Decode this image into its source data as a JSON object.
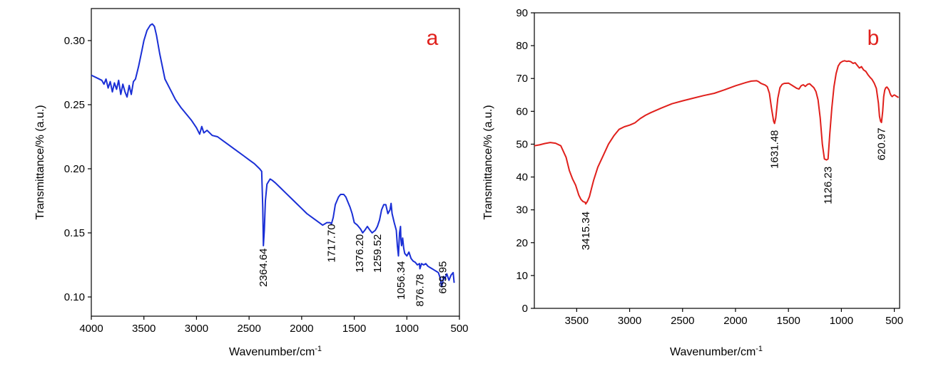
{
  "chart_data": [
    {
      "type": "line",
      "panel_label": "a",
      "title": "",
      "xlabel": "Wavenumber/cm",
      "xlabel_sup": "-1",
      "ylabel": "Transmittance/% (a.u.)",
      "xlim": [
        4000,
        500
      ],
      "ylim": [
        0.085,
        0.325
      ],
      "xticks": [
        "4000",
        "3500",
        "3000",
        "2500",
        "2000",
        "1500",
        "1000",
        "500"
      ],
      "yticks": [
        "0.10",
        "0.15",
        "0.20",
        "0.25",
        "0.30"
      ],
      "color": "#1a2fd6",
      "series": [
        {
          "name": "a",
          "x": [
            4000,
            3950,
            3900,
            3880,
            3860,
            3840,
            3820,
            3800,
            3780,
            3760,
            3740,
            3720,
            3700,
            3680,
            3660,
            3640,
            3620,
            3600,
            3580,
            3550,
            3520,
            3500,
            3470,
            3440,
            3420,
            3400,
            3380,
            3350,
            3300,
            3250,
            3200,
            3150,
            3100,
            3050,
            3000,
            2970,
            2950,
            2930,
            2900,
            2850,
            2800,
            2750,
            2700,
            2650,
            2600,
            2550,
            2500,
            2450,
            2400,
            2380,
            2370,
            2364,
            2355,
            2345,
            2330,
            2300,
            2280,
            2250,
            2200,
            2150,
            2100,
            2050,
            2000,
            1950,
            1900,
            1850,
            1800,
            1760,
            1730,
            1717,
            1700,
            1680,
            1650,
            1630,
            1600,
            1580,
            1560,
            1540,
            1520,
            1500,
            1470,
            1440,
            1420,
            1400,
            1376,
            1350,
            1330,
            1300,
            1280,
            1260,
            1240,
            1220,
            1200,
            1180,
            1160,
            1150,
            1140,
            1120,
            1100,
            1090,
            1080,
            1070,
            1060,
            1056,
            1050,
            1040,
            1030,
            1020,
            1000,
            980,
            960,
            940,
            920,
            900,
            880,
            876,
            860,
            840,
            820,
            800,
            780,
            760,
            740,
            720,
            700,
            680,
            670,
            660,
            650,
            640,
            620,
            600,
            580,
            560,
            550
          ],
          "values": [
            0.273,
            0.271,
            0.269,
            0.266,
            0.27,
            0.263,
            0.268,
            0.26,
            0.267,
            0.262,
            0.269,
            0.258,
            0.266,
            0.26,
            0.256,
            0.265,
            0.258,
            0.268,
            0.27,
            0.28,
            0.292,
            0.3,
            0.308,
            0.312,
            0.313,
            0.311,
            0.304,
            0.29,
            0.27,
            0.262,
            0.254,
            0.248,
            0.243,
            0.238,
            0.232,
            0.227,
            0.233,
            0.228,
            0.23,
            0.226,
            0.225,
            0.222,
            0.219,
            0.216,
            0.213,
            0.21,
            0.207,
            0.204,
            0.2,
            0.198,
            0.17,
            0.14,
            0.152,
            0.175,
            0.188,
            0.192,
            0.191,
            0.189,
            0.185,
            0.181,
            0.177,
            0.173,
            0.169,
            0.165,
            0.162,
            0.159,
            0.156,
            0.158,
            0.158,
            0.157,
            0.162,
            0.172,
            0.178,
            0.18,
            0.18,
            0.178,
            0.174,
            0.17,
            0.165,
            0.158,
            0.156,
            0.153,
            0.15,
            0.152,
            0.155,
            0.152,
            0.15,
            0.152,
            0.155,
            0.16,
            0.168,
            0.172,
            0.172,
            0.165,
            0.168,
            0.173,
            0.165,
            0.158,
            0.152,
            0.14,
            0.132,
            0.15,
            0.155,
            0.145,
            0.14,
            0.146,
            0.138,
            0.134,
            0.132,
            0.135,
            0.13,
            0.128,
            0.127,
            0.125,
            0.126,
            0.122,
            0.126,
            0.125,
            0.126,
            0.124,
            0.123,
            0.122,
            0.121,
            0.12,
            0.119,
            0.114,
            0.108,
            0.111,
            0.116,
            0.114,
            0.118,
            0.113,
            0.117,
            0.119,
            0.111
          ]
        }
      ],
      "peak_labels": [
        {
          "text": "2364.64",
          "x": 2364.64,
          "y_top": 0.138
        },
        {
          "text": "1717.70",
          "x": 1717.7,
          "y_top": 0.157
        },
        {
          "text": "1376.20",
          "x": 1450,
          "y_top": 0.149
        },
        {
          "text": "1259.52",
          "x": 1280,
          "y_top": 0.149
        },
        {
          "text": "1056.34",
          "x": 1056.34,
          "y_top": 0.128
        },
        {
          "text": "876.78",
          "x": 876.78,
          "y_top": 0.118
        },
        {
          "text": "669.95",
          "x": 660,
          "y_top": 0.128
        }
      ]
    },
    {
      "type": "line",
      "panel_label": "b",
      "title": "",
      "xlabel": "Wavenumber/cm",
      "xlabel_sup": "-1",
      "ylabel": "Transmittance/% (a.u.)",
      "xlim": [
        3900,
        450
      ],
      "ylim": [
        0,
        90
      ],
      "xticks": [
        "3500",
        "3000",
        "2500",
        "2000",
        "1500",
        "1000",
        "500"
      ],
      "yticks": [
        "0",
        "10",
        "20",
        "30",
        "40",
        "50",
        "60",
        "70",
        "80",
        "90"
      ],
      "color": "#e0201c",
      "series": [
        {
          "name": "b",
          "x": [
            3900,
            3850,
            3800,
            3750,
            3700,
            3650,
            3600,
            3570,
            3540,
            3510,
            3480,
            3460,
            3440,
            3420,
            3415,
            3400,
            3380,
            3360,
            3340,
            3300,
            3250,
            3200,
            3150,
            3100,
            3050,
            3000,
            2950,
            2900,
            2850,
            2800,
            2700,
            2600,
            2500,
            2400,
            2300,
            2200,
            2100,
            2000,
            1900,
            1850,
            1800,
            1780,
            1760,
            1720,
            1700,
            1680,
            1660,
            1640,
            1631,
            1620,
            1600,
            1580,
            1560,
            1540,
            1500,
            1460,
            1420,
            1400,
            1380,
            1360,
            1340,
            1320,
            1300,
            1280,
            1260,
            1240,
            1220,
            1200,
            1180,
            1160,
            1140,
            1126,
            1110,
            1090,
            1070,
            1050,
            1030,
            1010,
            990,
            970,
            950,
            930,
            910,
            890,
            870,
            850,
            830,
            810,
            790,
            770,
            750,
            730,
            710,
            690,
            670,
            650,
            640,
            630,
            621,
            610,
            600,
            590,
            580,
            570,
            560,
            550,
            540,
            530,
            520,
            510,
            500,
            490,
            480,
            470,
            460
          ],
          "values": [
            49.5,
            49.8,
            50.2,
            50.5,
            50.3,
            49.5,
            46,
            42,
            39.5,
            37.5,
            34.5,
            33.2,
            32.5,
            32.3,
            31.8,
            32.5,
            34,
            36.5,
            39,
            43,
            46.5,
            50,
            52.5,
            54.5,
            55.3,
            55.8,
            56.5,
            57.8,
            58.8,
            59.6,
            61,
            62.3,
            63.2,
            64,
            64.8,
            65.5,
            66.6,
            67.8,
            68.8,
            69.2,
            69.3,
            69,
            68.5,
            68,
            67.5,
            65.5,
            61,
            57,
            56.3,
            58,
            64,
            67.2,
            68.2,
            68.5,
            68.6,
            67.8,
            67,
            66.8,
            67.8,
            68.1,
            67.6,
            68.2,
            68.4,
            67.8,
            67.2,
            66,
            63.5,
            58,
            50,
            45.5,
            45.2,
            45.5,
            53,
            61,
            67.5,
            71.5,
            73.8,
            74.8,
            75.2,
            75.4,
            75.2,
            75.3,
            75.1,
            74.6,
            74.8,
            74,
            73.2,
            73.6,
            72.6,
            72.2,
            71.2,
            70.4,
            69.7,
            68.6,
            67,
            62.5,
            58.5,
            57,
            56.6,
            60,
            64.5,
            66.5,
            67.2,
            67.4,
            67,
            66.5,
            65.5,
            64.8,
            64.5,
            64.8,
            65,
            64.8,
            64.6,
            64.4,
            64.2
          ]
        }
      ],
      "peak_labels": [
        {
          "text": "3415.34",
          "x": 3415.34,
          "y_top": 29.5
        },
        {
          "text": "1631.48",
          "x": 1631.48,
          "y_top": 54.3
        },
        {
          "text": "1126.23",
          "x": 1126.23,
          "y_top": 43.2
        },
        {
          "text": "620.97",
          "x": 620.97,
          "y_top": 55
        }
      ]
    }
  ]
}
